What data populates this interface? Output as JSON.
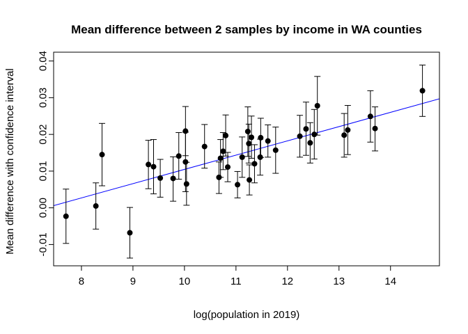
{
  "chart_data": {
    "type": "scatter",
    "title": "Mean difference between 2 samples by income in WA counties",
    "xlabel": "log(population in 2019)",
    "ylabel": "Mean difference with confidence interval",
    "xlim": [
      7.46,
      14.95
    ],
    "ylim": [
      -0.0158,
      0.0424
    ],
    "x_ticks": [
      8,
      9,
      10,
      11,
      12,
      13,
      14
    ],
    "x_tick_labels": [
      "8",
      "9",
      "10",
      "11",
      "12",
      "13",
      "14"
    ],
    "y_ticks": [
      -0.01,
      0.0,
      0.01,
      0.02,
      0.03,
      0.04
    ],
    "y_tick_labels": [
      "-0.01",
      "0.00",
      "0.01",
      "0.02",
      "0.03",
      "0.04"
    ],
    "grid": false,
    "colors": {
      "points": "#000000",
      "error_bars": "#000000",
      "regression_line": "#0000ff"
    },
    "regression_line": {
      "x": [
        7.46,
        14.95
      ],
      "y": [
        0.0006,
        0.0297
      ]
    },
    "points": [
      {
        "x": 7.7,
        "y": -0.0023,
        "lo": -0.0097,
        "hi": 0.0051
      },
      {
        "x": 8.28,
        "y": 0.0005,
        "lo": -0.0058,
        "hi": 0.0068
      },
      {
        "x": 8.4,
        "y": 0.0145,
        "lo": 0.006,
        "hi": 0.023
      },
      {
        "x": 8.94,
        "y": -0.0068,
        "lo": -0.0137,
        "hi": 0.0001
      },
      {
        "x": 9.3,
        "y": 0.0118,
        "lo": 0.0052,
        "hi": 0.0184
      },
      {
        "x": 9.4,
        "y": 0.0112,
        "lo": 0.0038,
        "hi": 0.0186
      },
      {
        "x": 9.53,
        "y": 0.0081,
        "lo": 0.0029,
        "hi": 0.0132
      },
      {
        "x": 9.78,
        "y": 0.008,
        "lo": 0.0018,
        "hi": 0.0139
      },
      {
        "x": 9.89,
        "y": 0.0141,
        "lo": 0.0078,
        "hi": 0.0205
      },
      {
        "x": 10.02,
        "y": 0.0209,
        "lo": 0.0142,
        "hi": 0.0276
      },
      {
        "x": 10.02,
        "y": 0.0125,
        "lo": 0.0044,
        "hi": 0.0206
      },
      {
        "x": 10.04,
        "y": 0.0065,
        "lo": 0.0007,
        "hi": 0.0124
      },
      {
        "x": 10.39,
        "y": 0.0167,
        "lo": 0.0108,
        "hi": 0.0227
      },
      {
        "x": 10.67,
        "y": 0.0083,
        "lo": 0.0039,
        "hi": 0.0125
      },
      {
        "x": 10.7,
        "y": 0.0135,
        "lo": 0.0083,
        "hi": 0.0186
      },
      {
        "x": 10.75,
        "y": 0.0154,
        "lo": 0.0104,
        "hi": 0.0205
      },
      {
        "x": 10.8,
        "y": 0.0197,
        "lo": 0.0141,
        "hi": 0.0253
      },
      {
        "x": 10.84,
        "y": 0.0111,
        "lo": 0.0071,
        "hi": 0.0151
      },
      {
        "x": 11.03,
        "y": 0.0063,
        "lo": 0.0027,
        "hi": 0.0099
      },
      {
        "x": 11.12,
        "y": 0.0138,
        "lo": 0.0083,
        "hi": 0.0193
      },
      {
        "x": 11.23,
        "y": 0.0208,
        "lo": 0.014,
        "hi": 0.0275
      },
      {
        "x": 11.25,
        "y": 0.0175,
        "lo": 0.0122,
        "hi": 0.0228
      },
      {
        "x": 11.26,
        "y": 0.0076,
        "lo": 0.0035,
        "hi": 0.0117
      },
      {
        "x": 11.3,
        "y": 0.0192,
        "lo": 0.0135,
        "hi": 0.025
      },
      {
        "x": 11.36,
        "y": 0.012,
        "lo": 0.0068,
        "hi": 0.0172
      },
      {
        "x": 11.47,
        "y": 0.0138,
        "lo": 0.0089,
        "hi": 0.0187
      },
      {
        "x": 11.48,
        "y": 0.0191,
        "lo": 0.0137,
        "hi": 0.0244
      },
      {
        "x": 11.62,
        "y": 0.0182,
        "lo": 0.0138,
        "hi": 0.0226
      },
      {
        "x": 11.77,
        "y": 0.0157,
        "lo": 0.0094,
        "hi": 0.022
      },
      {
        "x": 12.24,
        "y": 0.0195,
        "lo": 0.0138,
        "hi": 0.0252
      },
      {
        "x": 12.36,
        "y": 0.0215,
        "lo": 0.0143,
        "hi": 0.0288
      },
      {
        "x": 12.44,
        "y": 0.0177,
        "lo": 0.0122,
        "hi": 0.0232
      },
      {
        "x": 12.52,
        "y": 0.02,
        "lo": 0.0133,
        "hi": 0.0268
      },
      {
        "x": 12.58,
        "y": 0.0278,
        "lo": 0.0198,
        "hi": 0.0358
      },
      {
        "x": 13.1,
        "y": 0.0198,
        "lo": 0.0138,
        "hi": 0.0257
      },
      {
        "x": 13.17,
        "y": 0.0212,
        "lo": 0.0145,
        "hi": 0.0279
      },
      {
        "x": 13.61,
        "y": 0.0249,
        "lo": 0.0179,
        "hi": 0.0319
      },
      {
        "x": 13.7,
        "y": 0.0216,
        "lo": 0.0155,
        "hi": 0.0275
      },
      {
        "x": 14.62,
        "y": 0.0319,
        "lo": 0.0249,
        "hi": 0.0389
      }
    ]
  }
}
